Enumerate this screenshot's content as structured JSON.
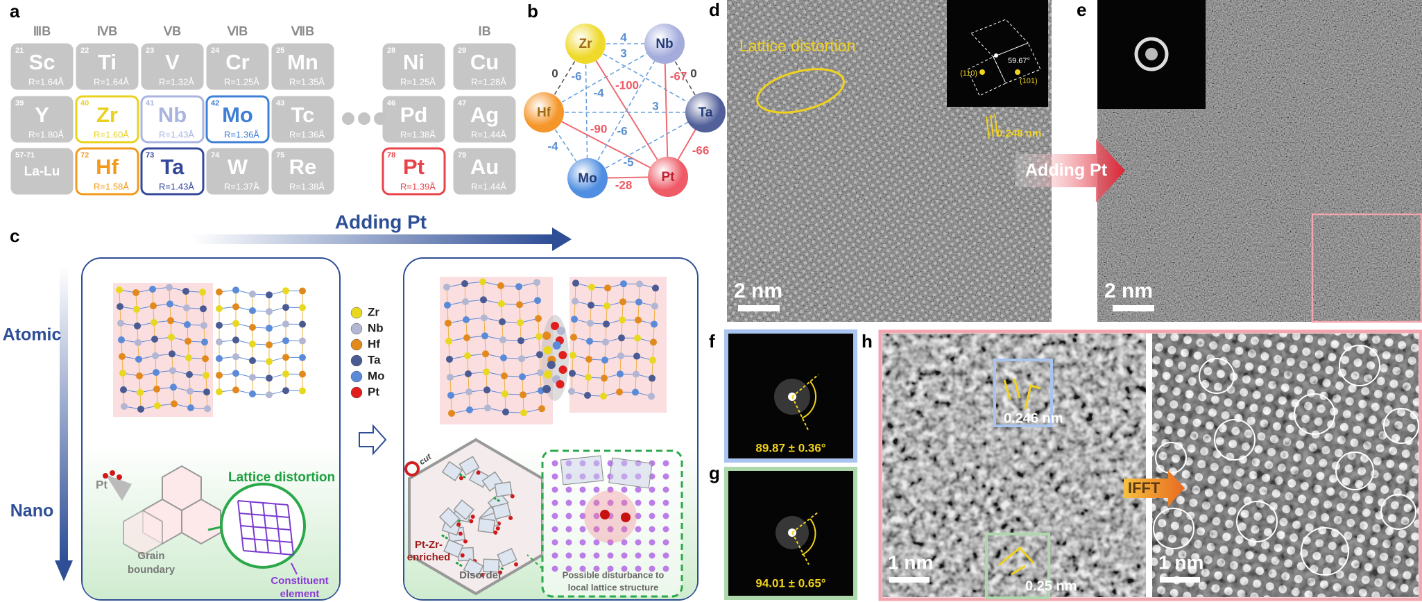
{
  "panel_labels": [
    "a",
    "b",
    "c",
    "d",
    "e",
    "f",
    "g",
    "h"
  ],
  "periodic_table": {
    "groups": [
      "ⅢB",
      "ⅣB",
      "ⅤB",
      "ⅥB",
      "ⅦB",
      "ⅠB"
    ],
    "elements": [
      {
        "number": 21,
        "symbol": "Sc",
        "radius": "R=1.64Å"
      },
      {
        "number": 22,
        "symbol": "Ti",
        "radius": "R=1.64Å"
      },
      {
        "number": 23,
        "symbol": "V",
        "radius": "R=1.32Å"
      },
      {
        "number": 24,
        "symbol": "Cr",
        "radius": "R=1.25Å"
      },
      {
        "number": 25,
        "symbol": "Mn",
        "radius": "R=1.35Å"
      },
      {
        "number": 28,
        "symbol": "Ni",
        "radius": "R=1.25Å"
      },
      {
        "number": 29,
        "symbol": "Cu",
        "radius": "R=1.28Å"
      },
      {
        "number": 39,
        "symbol": "Y",
        "radius": "R=1.80Å"
      },
      {
        "number": 40,
        "symbol": "Zr",
        "radius": "R=1.60Å",
        "color": "#e9d21e"
      },
      {
        "number": 41,
        "symbol": "Nb",
        "radius": "R=1.43Å",
        "color": "#a9b4e0"
      },
      {
        "number": 42,
        "symbol": "Mo",
        "radius": "R=1.36Å",
        "color": "#3f7fd6"
      },
      {
        "number": 43,
        "symbol": "Tc",
        "radius": "R=1.36Å"
      },
      {
        "number": 46,
        "symbol": "Pd",
        "radius": "R=1.38Å"
      },
      {
        "number": 47,
        "symbol": "Ag",
        "radius": "R=1.44Å"
      },
      {
        "number": "57-71",
        "symbol": "La-Lu"
      },
      {
        "number": 72,
        "symbol": "Hf",
        "radius": "R=1.58Å",
        "color": "#f39a1c"
      },
      {
        "number": 73,
        "symbol": "Ta",
        "radius": "R=1.43Å",
        "color": "#34489a"
      },
      {
        "number": 74,
        "symbol": "W",
        "radius": "R=1.37Å"
      },
      {
        "number": 75,
        "symbol": "Re",
        "radius": "R=1.38Å"
      },
      {
        "number": 78,
        "symbol": "Pt",
        "radius": "R=1.39Å",
        "color": "#e8424a"
      },
      {
        "number": 79,
        "symbol": "Au",
        "radius": "R=1.44Å"
      }
    ]
  },
  "mixing_enthalpy": {
    "nodes": [
      {
        "label": "Zr",
        "color": "#efd92a"
      },
      {
        "label": "Nb",
        "color": "#a4acdc"
      },
      {
        "label": "Ta",
        "color": "#52609a"
      },
      {
        "label": "Pt",
        "color": "#ee5a66"
      },
      {
        "label": "Mo",
        "color": "#4f8ee0"
      },
      {
        "label": "Hf",
        "color": "#f5962a"
      }
    ],
    "edges": [
      {
        "from": "Zr",
        "to": "Nb",
        "label": 4
      },
      {
        "from": "Zr",
        "to": "Ta",
        "label": 3
      },
      {
        "from": "Nb",
        "to": "Ta",
        "label": 0
      },
      {
        "from": "Hf",
        "to": "Zr",
        "label": 0
      },
      {
        "from": "Zr",
        "to": "Mo",
        "label": -6
      },
      {
        "from": "Hf",
        "to": "Nb",
        "label": -4
      },
      {
        "from": "Zr",
        "to": "Pt",
        "label": -100
      },
      {
        "from": "Nb",
        "to": "Pt",
        "label": -67
      },
      {
        "from": "Hf",
        "to": "Ta",
        "label": 3
      },
      {
        "from": "Hf",
        "to": "Pt",
        "label": -90
      },
      {
        "from": "Mo",
        "to": "Nb",
        "label": -6
      },
      {
        "from": "Ta",
        "to": "Pt",
        "label": -66
      },
      {
        "from": "Hf",
        "to": "Mo",
        "label": -4
      },
      {
        "from": "Mo",
        "to": "Ta",
        "label": -5
      },
      {
        "from": "Mo",
        "to": "Pt",
        "label": -28
      }
    ]
  },
  "schematic": {
    "arrow_label": "Adding Pt",
    "rows": [
      "Atomic",
      "Nano"
    ],
    "legend": [
      {
        "label": "Zr",
        "color": "#e8d820"
      },
      {
        "label": "Nb",
        "color": "#b2b6d2"
      },
      {
        "label": "Hf",
        "color": "#e2891e"
      },
      {
        "label": "Ta",
        "color": "#4a5a92"
      },
      {
        "label": "Mo",
        "color": "#5a8ad8"
      },
      {
        "label": "Pt",
        "color": "#e01e1e"
      }
    ],
    "pt": "Pt",
    "lattice_distortion": "Lattice distortion",
    "grain_boundary": [
      "Grain",
      "boundary"
    ],
    "constituent_element": [
      "Constituent",
      "element"
    ],
    "cut": "cut",
    "pt_zr_enriched": [
      "Pt-Zr-",
      "enriched"
    ],
    "disorder": "Disorder",
    "disturbance": [
      "Possible disturbance to",
      "local lattice structure"
    ]
  },
  "hrtem_before": {
    "annotation": "Lattice distortion",
    "fft_angle": "59.67°",
    "fft_planes": [
      "(110)",
      "(101)"
    ],
    "d_spacing": "0.248 nm",
    "scale_bar": "2 nm"
  },
  "hrtem_after": {
    "arrow_label": "Adding Pt",
    "scale_bar": "2 nm"
  },
  "fft_f": {
    "angle": "89.87 ± 0.36°"
  },
  "fft_g": {
    "angle": "94.01 ± 0.65°"
  },
  "ifft": {
    "d_spacings": [
      "0.246 nm",
      "0.25 nm"
    ],
    "arrow_label": "IFFT",
    "scale_bars": [
      "1 nm",
      "1 nm"
    ]
  }
}
